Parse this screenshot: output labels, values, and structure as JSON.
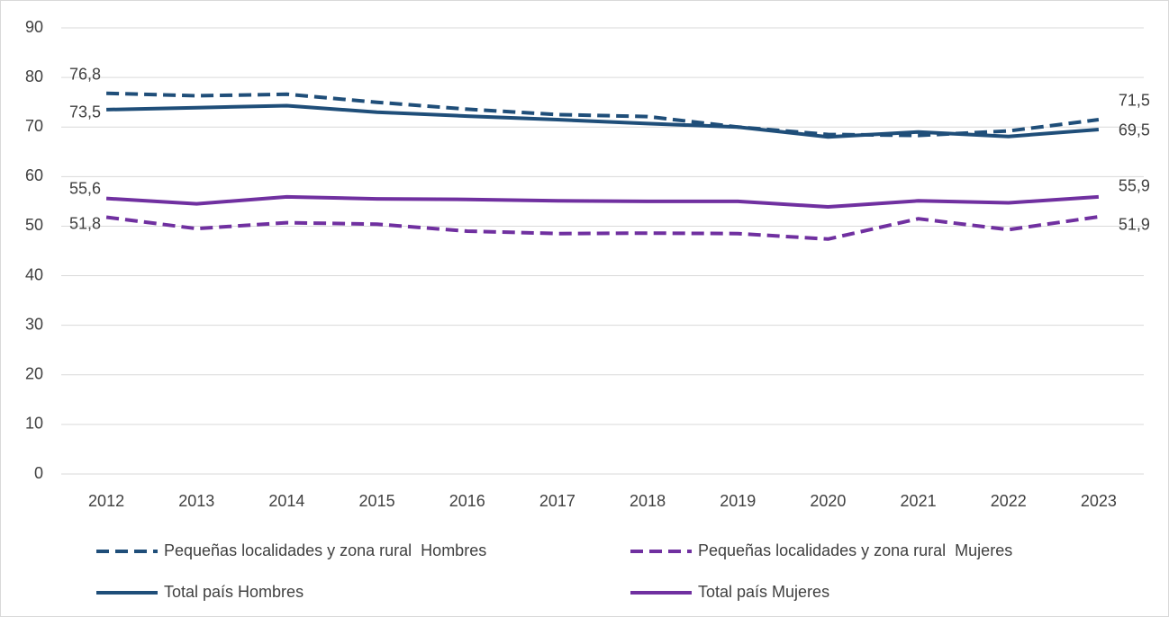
{
  "chart_data": {
    "type": "line",
    "categories": [
      "2012",
      "2013",
      "2014",
      "2015",
      "2016",
      "2017",
      "2018",
      "2019",
      "2020",
      "2021",
      "2022",
      "2023"
    ],
    "ylim": [
      0,
      90
    ],
    "yticks": [
      0,
      10,
      20,
      30,
      40,
      50,
      60,
      70,
      80,
      90
    ],
    "grid": true,
    "legend": "bottom",
    "series": [
      {
        "name": "Pequeñas localidades y zona rural  Hombres",
        "color": "#1f4e79",
        "dashed": true,
        "values": [
          76.8,
          76.3,
          76.6,
          75.0,
          73.6,
          72.5,
          72.1,
          70.0,
          68.5,
          68.3,
          69.2,
          71.5
        ],
        "value_labels": [
          "76,8",
          null,
          null,
          null,
          null,
          null,
          null,
          null,
          null,
          null,
          null,
          "71,5"
        ]
      },
      {
        "name": "Pequeñas localidades y zona rural  Mujeres",
        "color": "#7030a0",
        "dashed": true,
        "values": [
          51.8,
          49.5,
          50.7,
          50.4,
          49.0,
          48.5,
          48.6,
          48.5,
          47.4,
          51.5,
          49.3,
          51.9
        ],
        "value_labels": [
          "51,8",
          null,
          null,
          null,
          null,
          null,
          null,
          null,
          null,
          null,
          null,
          "51,9"
        ]
      },
      {
        "name": "Total país Hombres",
        "color": "#1f4e79",
        "dashed": false,
        "values": [
          73.5,
          73.9,
          74.3,
          73.0,
          72.2,
          71.5,
          70.7,
          70.0,
          68.0,
          69.0,
          68.1,
          69.5
        ],
        "value_labels": [
          "73,5",
          null,
          null,
          null,
          null,
          null,
          null,
          null,
          null,
          null,
          null,
          "69,5"
        ]
      },
      {
        "name": "Total país Mujeres",
        "color": "#7030a0",
        "dashed": false,
        "values": [
          55.6,
          54.5,
          55.9,
          55.5,
          55.4,
          55.1,
          55.0,
          55.0,
          53.9,
          55.1,
          54.7,
          55.9
        ],
        "value_labels": [
          "55,6",
          null,
          null,
          null,
          null,
          null,
          null,
          null,
          null,
          null,
          null,
          "55,9"
        ]
      }
    ]
  }
}
